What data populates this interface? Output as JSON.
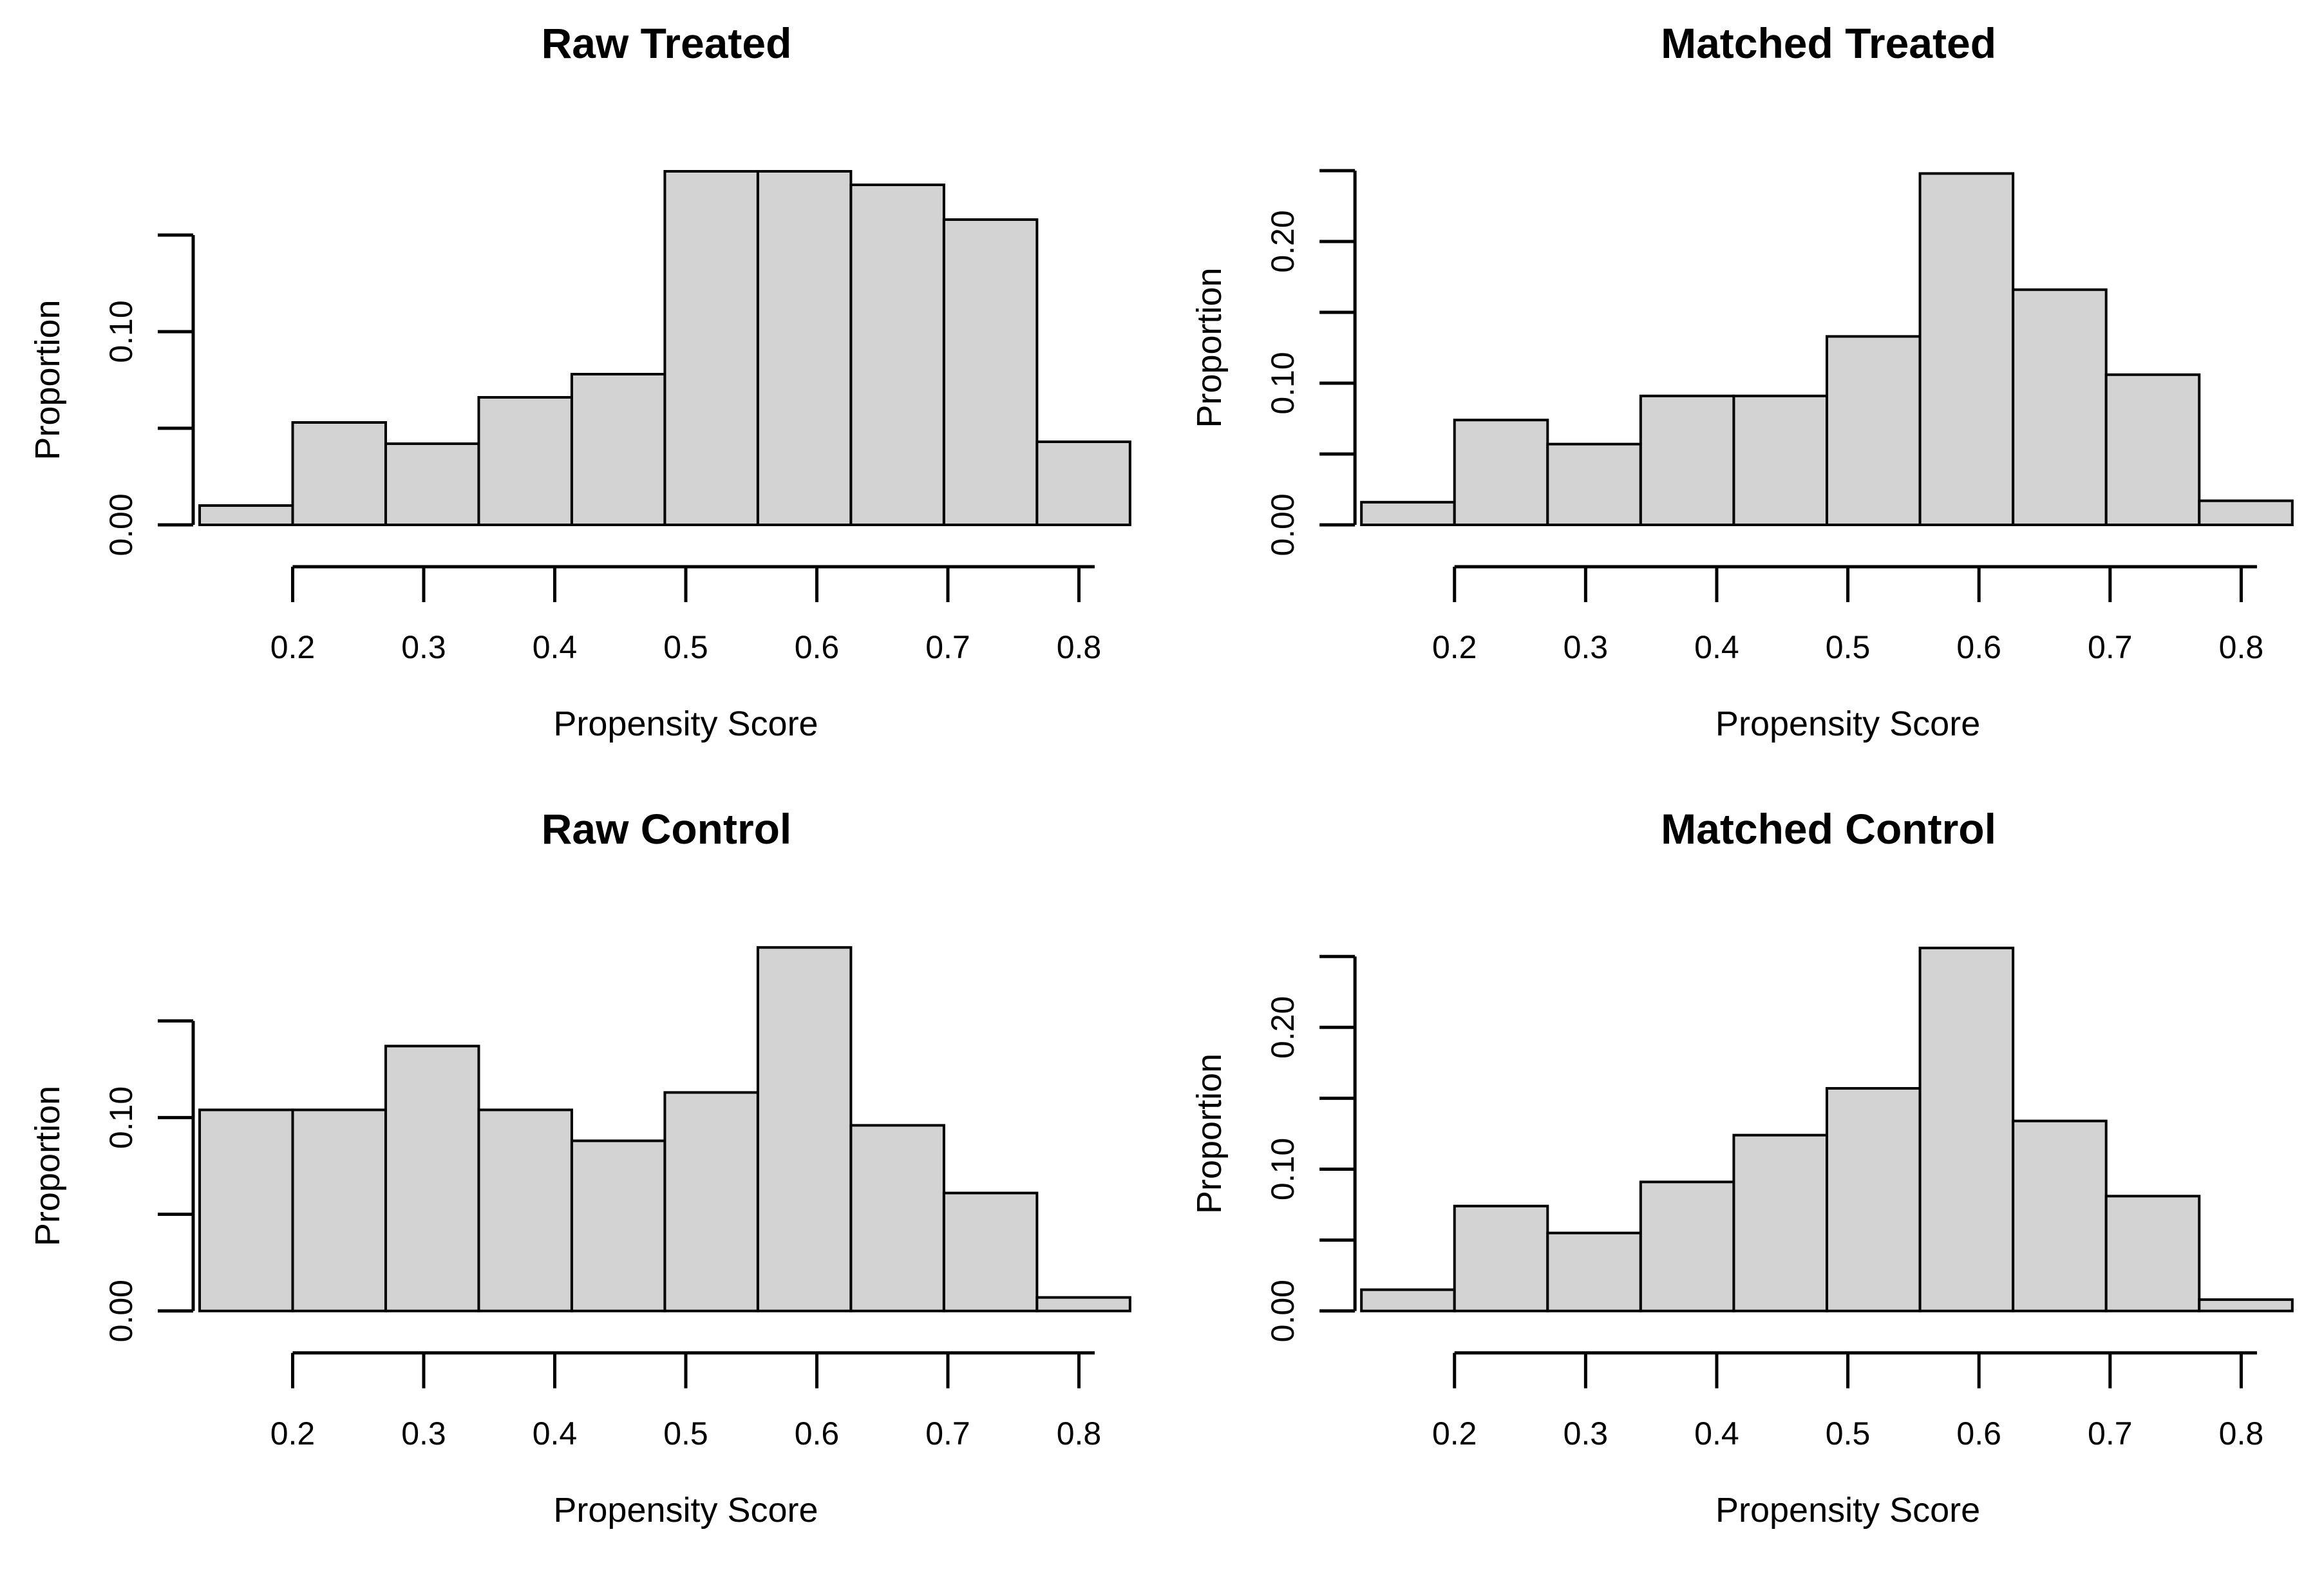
{
  "page": {
    "background": "#ffffff"
  },
  "style": {
    "bar_fill": "#d3d3d3",
    "bar_stroke": "#000000",
    "axis_color": "#000000",
    "text_color": "#000000"
  },
  "chart_data": [
    {
      "id": "raw-treated",
      "type": "bar",
      "chart_kind": "histogram",
      "title": "Raw Treated",
      "xlabel": "Propensity Score",
      "ylabel": "Proportion",
      "bin_start": 0.129,
      "bin_width": 0.071,
      "bin_edges": [
        0.129,
        0.2,
        0.271,
        0.342,
        0.413,
        0.484,
        0.555,
        0.626,
        0.697,
        0.768,
        0.839
      ],
      "values": [
        0.01,
        0.053,
        0.042,
        0.066,
        0.078,
        0.183,
        0.183,
        0.176,
        0.158,
        0.043
      ],
      "x_tick_values": [
        0.2,
        0.3,
        0.4,
        0.5,
        0.6,
        0.7,
        0.8
      ],
      "x_tick_labels": [
        "0.2",
        "0.3",
        "0.4",
        "0.5",
        "0.6",
        "0.7",
        "0.8"
      ],
      "y_tick_values": [
        0,
        0.05,
        0.1,
        0.15
      ],
      "y_labeled_ticks": [
        {
          "value": 0,
          "label": "0.00"
        },
        {
          "value": 0.1,
          "label": "0.10"
        }
      ],
      "ylim": [
        0,
        0.15
      ],
      "xlim": [
        0.129,
        0.839
      ],
      "grid": false,
      "legend": null
    },
    {
      "id": "matched-treated",
      "type": "bar",
      "chart_kind": "histogram",
      "title": "Matched Treated",
      "xlabel": "Propensity Score",
      "ylabel": "Proportion",
      "bin_start": 0.129,
      "bin_width": 0.071,
      "bin_edges": [
        0.129,
        0.2,
        0.271,
        0.342,
        0.413,
        0.484,
        0.555,
        0.626,
        0.697,
        0.768,
        0.839
      ],
      "values": [
        0.016,
        0.074,
        0.057,
        0.091,
        0.091,
        0.133,
        0.248,
        0.166,
        0.106,
        0.017
      ],
      "x_tick_values": [
        0.2,
        0.3,
        0.4,
        0.5,
        0.6,
        0.7,
        0.8
      ],
      "x_tick_labels": [
        "0.2",
        "0.3",
        "0.4",
        "0.5",
        "0.6",
        "0.7",
        "0.8"
      ],
      "y_tick_values": [
        0,
        0.05,
        0.1,
        0.15,
        0.2,
        0.25
      ],
      "y_labeled_ticks": [
        {
          "value": 0,
          "label": "0.00"
        },
        {
          "value": 0.1,
          "label": "0.10"
        },
        {
          "value": 0.2,
          "label": "0.20"
        }
      ],
      "ylim": [
        0,
        0.25
      ],
      "xlim": [
        0.129,
        0.839
      ],
      "grid": false,
      "legend": null
    },
    {
      "id": "raw-control",
      "type": "bar",
      "chart_kind": "histogram",
      "title": "Raw Control",
      "xlabel": "Propensity Score",
      "ylabel": "Proportion",
      "bin_start": 0.129,
      "bin_width": 0.071,
      "bin_edges": [
        0.129,
        0.2,
        0.271,
        0.342,
        0.413,
        0.484,
        0.555,
        0.626,
        0.697,
        0.768,
        0.839
      ],
      "values": [
        0.104,
        0.104,
        0.137,
        0.104,
        0.088,
        0.113,
        0.188,
        0.096,
        0.061,
        0.007
      ],
      "x_tick_values": [
        0.2,
        0.3,
        0.4,
        0.5,
        0.6,
        0.7,
        0.8
      ],
      "x_tick_labels": [
        "0.2",
        "0.3",
        "0.4",
        "0.5",
        "0.6",
        "0.7",
        "0.8"
      ],
      "y_tick_values": [
        0,
        0.05,
        0.1,
        0.15
      ],
      "y_labeled_ticks": [
        {
          "value": 0,
          "label": "0.00"
        },
        {
          "value": 0.1,
          "label": "0.10"
        }
      ],
      "ylim": [
        0,
        0.15
      ],
      "xlim": [
        0.129,
        0.839
      ],
      "grid": false,
      "legend": null
    },
    {
      "id": "matched-control",
      "type": "bar",
      "chart_kind": "histogram",
      "title": "Matched Control",
      "xlabel": "Propensity Score",
      "ylabel": "Proportion",
      "bin_start": 0.129,
      "bin_width": 0.071,
      "bin_edges": [
        0.129,
        0.2,
        0.271,
        0.342,
        0.413,
        0.484,
        0.555,
        0.626,
        0.697,
        0.768,
        0.839
      ],
      "values": [
        0.015,
        0.074,
        0.055,
        0.091,
        0.124,
        0.157,
        0.256,
        0.134,
        0.081,
        0.008
      ],
      "x_tick_values": [
        0.2,
        0.3,
        0.4,
        0.5,
        0.6,
        0.7,
        0.8
      ],
      "x_tick_labels": [
        "0.2",
        "0.3",
        "0.4",
        "0.5",
        "0.6",
        "0.7",
        "0.8"
      ],
      "y_tick_values": [
        0,
        0.05,
        0.1,
        0.15,
        0.2,
        0.25
      ],
      "y_labeled_ticks": [
        {
          "value": 0,
          "label": "0.00"
        },
        {
          "value": 0.1,
          "label": "0.10"
        },
        {
          "value": 0.2,
          "label": "0.20"
        }
      ],
      "ylim": [
        0,
        0.25
      ],
      "xlim": [
        0.129,
        0.839
      ],
      "grid": false,
      "legend": null
    }
  ]
}
